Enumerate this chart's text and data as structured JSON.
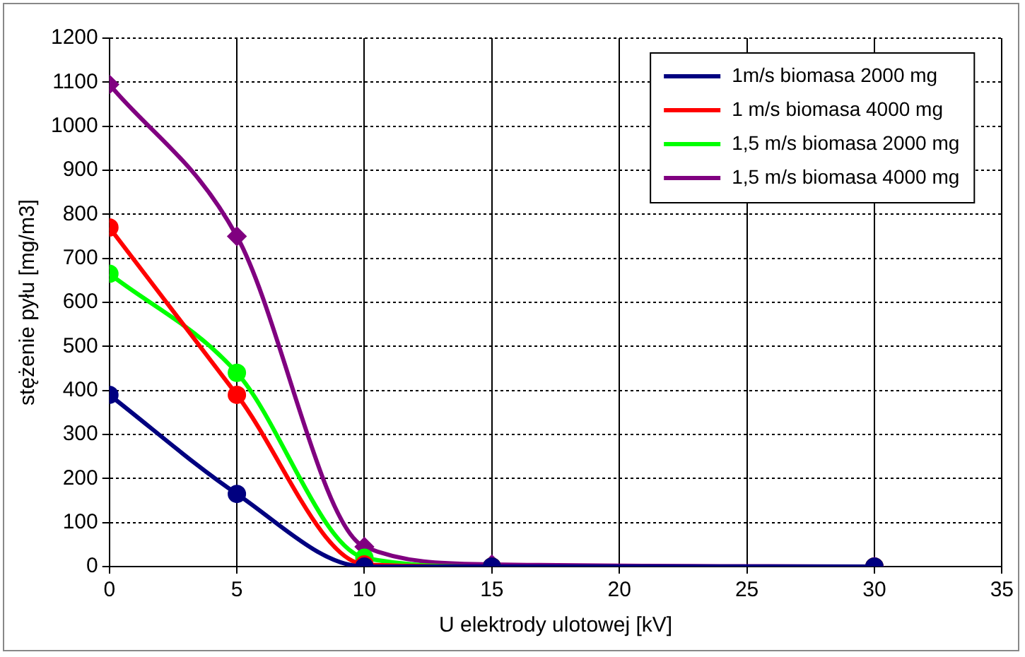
{
  "chart_data": {
    "type": "line",
    "xlabel": "U elektrody ulotowej [kV]",
    "ylabel": "stężenie pyłu [mg/m3]",
    "x": [
      0,
      5,
      10,
      15,
      30
    ],
    "series": [
      {
        "name": "1m/s biomasa 2000 mg",
        "color": "#000080",
        "marker": "circle",
        "values": [
          390,
          165,
          0,
          0,
          0
        ]
      },
      {
        "name": "1 m/s biomasa 4000 mg",
        "color": "#ff0000",
        "marker": "circle",
        "values": [
          770,
          390,
          5,
          0,
          0
        ]
      },
      {
        "name": "1,5 m/s biomasa 2000 mg",
        "color": "#00ff00",
        "marker": "circle",
        "values": [
          665,
          440,
          20,
          0,
          0
        ]
      },
      {
        "name": "1,5 m/s biomasa 4000 mg",
        "color": "#800080",
        "marker": "diamond",
        "values": [
          1095,
          750,
          45,
          5,
          0
        ]
      }
    ],
    "xlim": [
      0,
      35
    ],
    "xticks": [
      0,
      5,
      10,
      15,
      20,
      25,
      30,
      35
    ],
    "ylim": [
      0,
      1200
    ],
    "yticks": [
      0,
      100,
      200,
      300,
      400,
      500,
      600,
      700,
      800,
      900,
      1000,
      1100,
      1200
    ],
    "grid": true,
    "legend": "top right",
    "line_style": "solid"
  }
}
